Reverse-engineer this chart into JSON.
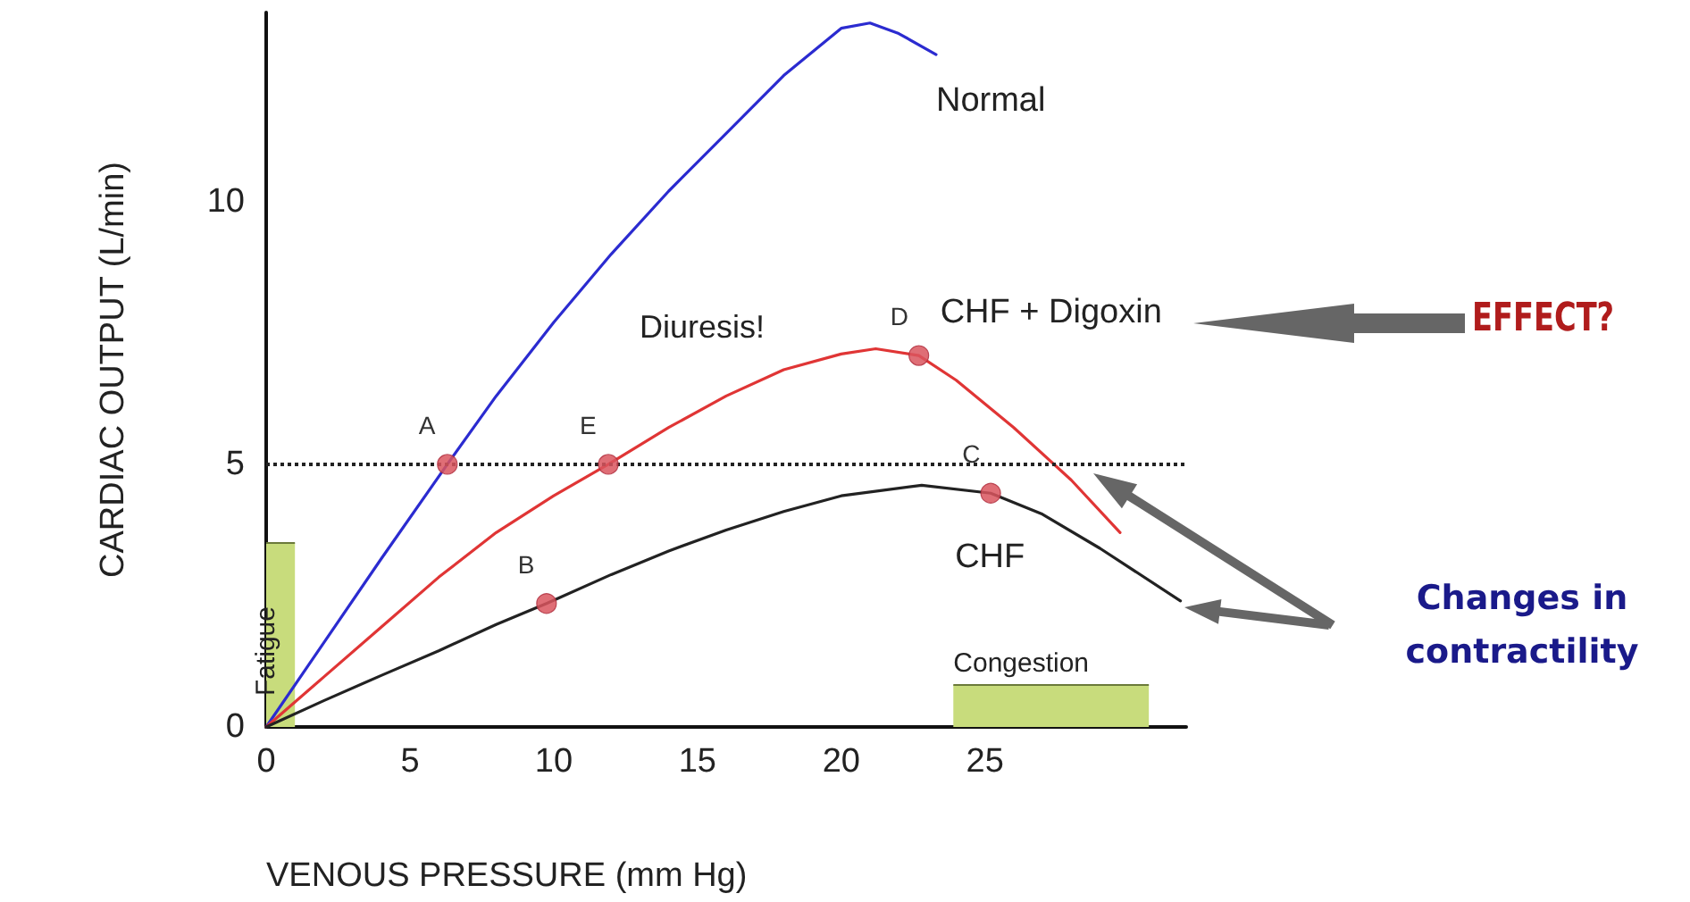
{
  "chart_data": {
    "type": "line",
    "xlabel": "VENOUS PRESSURE (mm Hg)",
    "ylabel": "CARDIAC OUTPUT (L/min)",
    "xlim": [
      0,
      32
    ],
    "xticks": [
      0,
      5,
      10,
      15,
      20,
      25
    ],
    "ylim": [
      0,
      13.6
    ],
    "yticks": [
      0,
      5,
      10
    ],
    "grid": false,
    "legend": false,
    "marker": "none",
    "line_style": "solid",
    "series": [
      {
        "name": "Normal",
        "color": "#2b2bd0",
        "x": [
          0,
          2,
          4,
          6.3,
          8,
          10,
          12,
          14,
          16,
          18,
          20,
          21,
          22,
          23.3
        ],
        "values": [
          0,
          1.6,
          3.2,
          5,
          6.3,
          7.7,
          9.0,
          10.2,
          11.3,
          12.4,
          13.3,
          13.4,
          13.2,
          12.8
        ]
      },
      {
        "name": "CHF + Digoxin",
        "color": "#e03535",
        "x": [
          0,
          2,
          4,
          6,
          8,
          10,
          11.9,
          14,
          16,
          18,
          20,
          21.2,
          22.7,
          24,
          26,
          28,
          29.7
        ],
        "values": [
          0,
          0.95,
          1.9,
          2.85,
          3.7,
          4.4,
          5,
          5.7,
          6.3,
          6.8,
          7.1,
          7.2,
          7.07,
          6.6,
          5.7,
          4.7,
          3.7
        ]
      },
      {
        "name": "CHF",
        "color": "#222222",
        "x": [
          0,
          2,
          4,
          6,
          8,
          9.75,
          12,
          14,
          16,
          18,
          20,
          22.8,
          25.2,
          27,
          29,
          31.8
        ],
        "values": [
          0,
          0.5,
          0.98,
          1.45,
          1.95,
          2.35,
          2.9,
          3.35,
          3.75,
          4.1,
          4.4,
          4.6,
          4.45,
          4.05,
          3.4,
          2.4
        ]
      },
      {
        "type": "scatter",
        "marker": "circle",
        "color": "#d9555e",
        "x": [
          6.3,
          9.75,
          25.2,
          22.7,
          11.9
        ],
        "values": [
          5,
          2.35,
          4.45,
          7.07,
          5
        ]
      },
      {
        "type": "area",
        "name": "Fatigue",
        "color": "#c8dc7c",
        "x": [
          0,
          1
        ],
        "values": [
          3.5,
          3.5
        ]
      },
      {
        "type": "area",
        "name": "Congestion",
        "color": "#c8dc7c",
        "x": [
          23.9,
          30.7
        ],
        "values": [
          0.8,
          0.8
        ]
      }
    ],
    "ref_lines": [
      {
        "axis": "y",
        "value": 5,
        "color": "#222222",
        "line_style": "dotted"
      }
    ],
    "annotations": [
      {
        "text": "A",
        "x": 6.3,
        "y": 5
      },
      {
        "text": "B",
        "x": 9.75,
        "y": 2.35
      },
      {
        "text": "C",
        "x": 25.2,
        "y": 4.45
      },
      {
        "text": "D",
        "x": 22.7,
        "y": 7.07
      },
      {
        "text": "E",
        "x": 11.9,
        "y": 5
      },
      "Diuresis!",
      "EFFECT?",
      "Changes in contractility"
    ]
  }
}
